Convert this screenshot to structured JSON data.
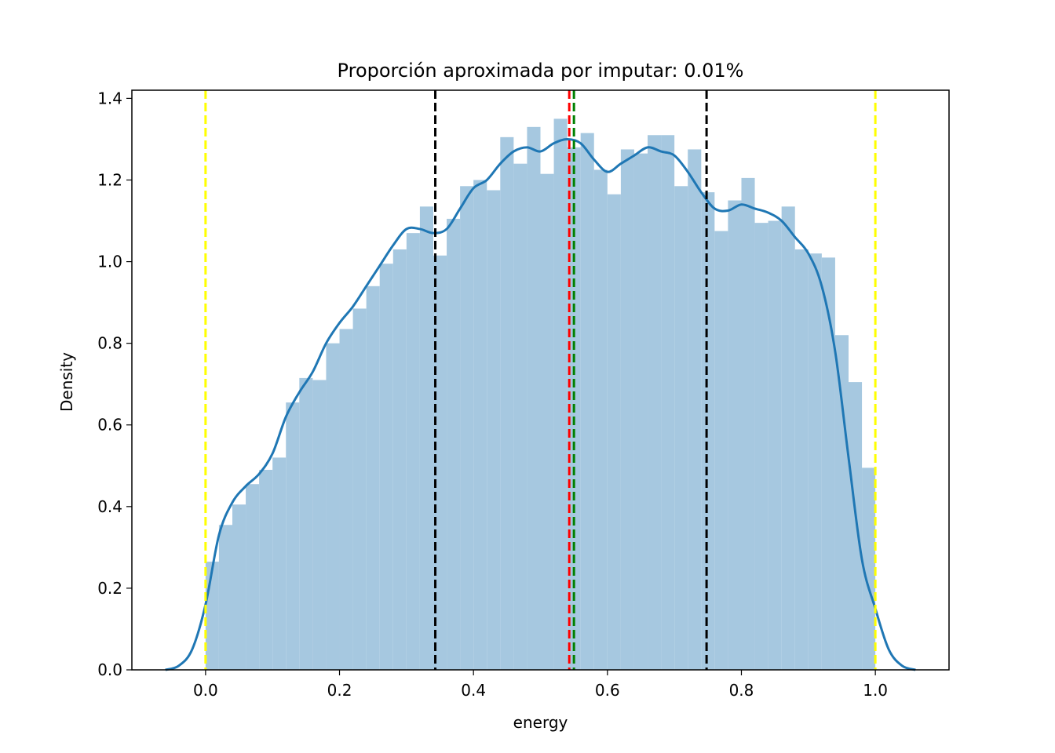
{
  "chart_data": {
    "type": "bar",
    "title": "Proporción aproximada por imputar: 0.01%",
    "xlabel": "energy",
    "ylabel": "Density",
    "xlim": [
      -0.11,
      1.11
    ],
    "ylim": [
      0.0,
      1.42
    ],
    "xticks": [
      0.0,
      0.2,
      0.4,
      0.6,
      0.8,
      1.0
    ],
    "xtick_labels": [
      "0.0",
      "0.2",
      "0.4",
      "0.6",
      "0.8",
      "1.0"
    ],
    "yticks": [
      0.0,
      0.2,
      0.4,
      0.6,
      0.8,
      1.0,
      1.2,
      1.4
    ],
    "ytick_labels": [
      "0.0",
      "0.2",
      "0.4",
      "0.6",
      "0.8",
      "1.0",
      "1.2",
      "1.4"
    ],
    "grid": false,
    "histogram": {
      "bin_start": 0.0,
      "bin_width": 0.02,
      "color": "#a6c8e0",
      "values": [
        0.265,
        0.355,
        0.405,
        0.455,
        0.49,
        0.52,
        0.655,
        0.715,
        0.71,
        0.8,
        0.835,
        0.885,
        0.94,
        0.995,
        1.03,
        1.07,
        1.135,
        1.015,
        1.105,
        1.185,
        1.2,
        1.175,
        1.305,
        1.24,
        1.33,
        1.215,
        1.35,
        1.28,
        1.315,
        1.225,
        1.165,
        1.275,
        1.265,
        1.31,
        1.31,
        1.185,
        1.275,
        1.17,
        1.075,
        1.15,
        1.205,
        1.095,
        1.1,
        1.135,
        1.03,
        1.02,
        1.01,
        0.82,
        0.705,
        0.495
      ]
    },
    "kde": {
      "color": "#1f77b4",
      "x": [
        -0.06,
        -0.04,
        -0.02,
        0.0,
        0.02,
        0.04,
        0.06,
        0.08,
        0.1,
        0.12,
        0.14,
        0.16,
        0.18,
        0.2,
        0.22,
        0.24,
        0.26,
        0.28,
        0.3,
        0.32,
        0.34,
        0.36,
        0.38,
        0.4,
        0.42,
        0.44,
        0.46,
        0.48,
        0.5,
        0.52,
        0.54,
        0.56,
        0.58,
        0.6,
        0.62,
        0.64,
        0.66,
        0.68,
        0.7,
        0.72,
        0.74,
        0.76,
        0.78,
        0.8,
        0.82,
        0.84,
        0.86,
        0.88,
        0.9,
        0.92,
        0.94,
        0.96,
        0.98,
        1.0,
        1.02,
        1.04,
        1.06
      ],
      "y": [
        0.0,
        0.01,
        0.05,
        0.16,
        0.33,
        0.41,
        0.45,
        0.48,
        0.53,
        0.62,
        0.68,
        0.73,
        0.8,
        0.85,
        0.89,
        0.94,
        0.99,
        1.04,
        1.08,
        1.08,
        1.07,
        1.08,
        1.13,
        1.18,
        1.2,
        1.24,
        1.27,
        1.28,
        1.27,
        1.29,
        1.3,
        1.29,
        1.25,
        1.22,
        1.24,
        1.26,
        1.28,
        1.27,
        1.26,
        1.22,
        1.17,
        1.13,
        1.125,
        1.14,
        1.13,
        1.12,
        1.1,
        1.06,
        1.02,
        0.94,
        0.78,
        0.52,
        0.27,
        0.15,
        0.05,
        0.01,
        0.0
      ]
    },
    "vlines": [
      {
        "x": 0.0,
        "color": "#ffff00"
      },
      {
        "x": 1.0,
        "color": "#ffff00"
      },
      {
        "x": 0.343,
        "color": "#000000"
      },
      {
        "x": 0.748,
        "color": "#000000"
      },
      {
        "x": 0.543,
        "color": "#ff0000"
      },
      {
        "x": 0.55,
        "color": "#008000"
      }
    ]
  }
}
